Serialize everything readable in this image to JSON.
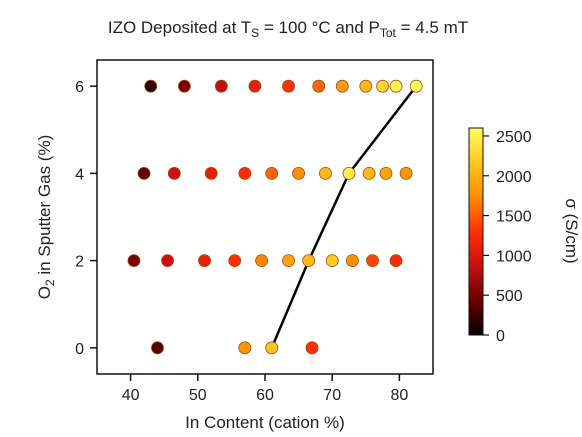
{
  "chart_data": {
    "type": "scatter",
    "title": {
      "prefix": "IZO Deposited at T",
      "sub1": "S",
      "middle": " = 100 °C and P",
      "sub2": "Tot",
      "suffix": " = 4.5 mT"
    },
    "xlabel": "In Content (cation %)",
    "ylabel": {
      "main": "O",
      "sub": "2",
      "rest": " in Sputter Gas (%)"
    },
    "xlim": [
      35,
      85
    ],
    "ylim": [
      -0.6,
      6.6
    ],
    "xticks": [
      40,
      50,
      60,
      70,
      80
    ],
    "yticks": [
      0,
      2,
      4,
      6
    ],
    "colorbar": {
      "label": "σ (S/cm)",
      "range": [
        0,
        2600
      ],
      "ticks": [
        0,
        500,
        1000,
        1500,
        2000,
        2500
      ],
      "colormap": [
        "#000000",
        "#6b0000",
        "#c81010",
        "#ff3000",
        "#ff8c00",
        "#ffc820",
        "#ffff60"
      ]
    },
    "points": [
      {
        "x": 43,
        "y": 6,
        "sigma": 200
      },
      {
        "x": 48,
        "y": 6,
        "sigma": 500
      },
      {
        "x": 53.5,
        "y": 6,
        "sigma": 850
      },
      {
        "x": 58.5,
        "y": 6,
        "sigma": 1100
      },
      {
        "x": 63.5,
        "y": 6,
        "sigma": 1300
      },
      {
        "x": 68,
        "y": 6,
        "sigma": 1550
      },
      {
        "x": 71.5,
        "y": 6,
        "sigma": 1850
      },
      {
        "x": 75,
        "y": 6,
        "sigma": 2050
      },
      {
        "x": 77.5,
        "y": 6,
        "sigma": 2300
      },
      {
        "x": 79.5,
        "y": 6,
        "sigma": 2500
      },
      {
        "x": 82.5,
        "y": 6,
        "sigma": 2600
      },
      {
        "x": 42,
        "y": 4,
        "sigma": 400
      },
      {
        "x": 46.5,
        "y": 4,
        "sigma": 900
      },
      {
        "x": 52,
        "y": 4,
        "sigma": 1100
      },
      {
        "x": 57,
        "y": 4,
        "sigma": 1250
      },
      {
        "x": 61,
        "y": 4,
        "sigma": 1550
      },
      {
        "x": 65,
        "y": 4,
        "sigma": 1750
      },
      {
        "x": 69,
        "y": 4,
        "sigma": 2050
      },
      {
        "x": 72.5,
        "y": 4,
        "sigma": 2450
      },
      {
        "x": 75.5,
        "y": 4,
        "sigma": 2050
      },
      {
        "x": 78,
        "y": 4,
        "sigma": 1900
      },
      {
        "x": 81,
        "y": 4,
        "sigma": 1800
      },
      {
        "x": 40.5,
        "y": 2,
        "sigma": 500
      },
      {
        "x": 45.5,
        "y": 2,
        "sigma": 900
      },
      {
        "x": 51,
        "y": 2,
        "sigma": 1100
      },
      {
        "x": 55.5,
        "y": 2,
        "sigma": 1300
      },
      {
        "x": 59.5,
        "y": 2,
        "sigma": 1700
      },
      {
        "x": 63.5,
        "y": 2,
        "sigma": 1900
      },
      {
        "x": 66.5,
        "y": 2,
        "sigma": 2050
      },
      {
        "x": 70,
        "y": 2,
        "sigma": 2200
      },
      {
        "x": 73,
        "y": 2,
        "sigma": 1750
      },
      {
        "x": 76,
        "y": 2,
        "sigma": 1400
      },
      {
        "x": 79.5,
        "y": 2,
        "sigma": 1250
      },
      {
        "x": 44,
        "y": 0,
        "sigma": 350
      },
      {
        "x": 57,
        "y": 0,
        "sigma": 1800
      },
      {
        "x": 61,
        "y": 0,
        "sigma": 2150
      },
      {
        "x": 67,
        "y": 0,
        "sigma": 1300
      }
    ],
    "trend_line": [
      {
        "x": 61,
        "y": 0
      },
      {
        "x": 66.5,
        "y": 2
      },
      {
        "x": 72.5,
        "y": 4
      },
      {
        "x": 82.5,
        "y": 6
      }
    ]
  }
}
